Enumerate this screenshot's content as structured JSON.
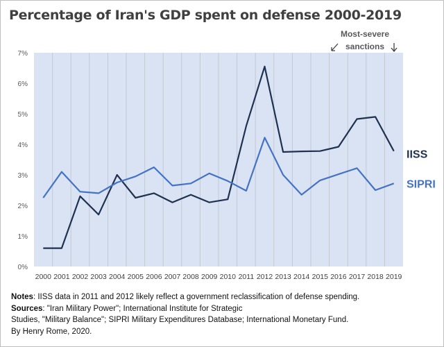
{
  "chart_data": {
    "type": "line",
    "title": "Percentage of Iran's GDP spent on defense 2000-2019",
    "categories": [
      "2000",
      "2001",
      "2002",
      "2003",
      "2004",
      "2005",
      "2006",
      "2007",
      "2008",
      "2009",
      "2010",
      "2011",
      "2012",
      "2013",
      "2014",
      "2015",
      "2016",
      "2017",
      "2018",
      "2019"
    ],
    "ylim": [
      0,
      7
    ],
    "yticks": [
      "0%",
      "1%",
      "2%",
      "3%",
      "4%",
      "5%",
      "6%",
      "7%"
    ],
    "grid": "vertical",
    "series": [
      {
        "name": "IISS",
        "color": "#1f3150",
        "values": [
          0.6,
          0.6,
          2.3,
          1.7,
          3.0,
          2.25,
          2.4,
          2.1,
          2.35,
          2.1,
          2.2,
          4.6,
          6.55,
          3.75,
          3.77,
          3.78,
          3.92,
          4.83,
          4.9,
          3.78
        ]
      },
      {
        "name": "SIPRI",
        "color": "#4472c4",
        "values": [
          2.25,
          3.1,
          2.45,
          2.4,
          2.75,
          2.95,
          3.25,
          2.65,
          2.72,
          3.05,
          2.8,
          2.48,
          4.22,
          3.0,
          2.35,
          2.82,
          3.02,
          3.22,
          2.5,
          2.72
        ]
      }
    ],
    "annotation": {
      "line1": "Most-severe",
      "line2": "sanctions",
      "arrow_years": [
        "2016",
        "2019"
      ]
    },
    "plot_background": "#dae3f3"
  },
  "notes": {
    "notes_label": "Notes",
    "notes_text": ": IISS data in 2011 and 2012 likely reflect a government  reclassification of defense spending.",
    "sources_label": "Sources",
    "sources_text": ":  \"Iran Military Power\"; International Institute for Strategic",
    "sources_text2": "Studies, \"Military Balance\"; SIPRI Military Expenditures Database; International Monetary Fund.",
    "byline": "By Henry Rome,  2020."
  }
}
